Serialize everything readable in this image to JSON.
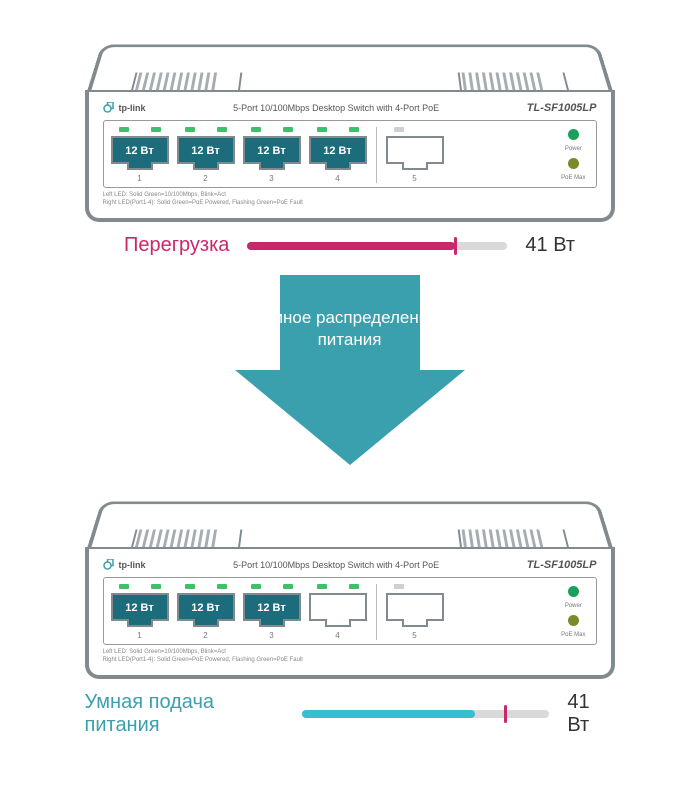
{
  "colors": {
    "stroke": "#808a8f",
    "teal": "#1d6c7b",
    "teal_arrow": "#3aa0ad",
    "teal_bar": "#35c0cd",
    "magenta": "#c9286b",
    "led_green": "#3fbf6a",
    "port_empty": "#ffffff",
    "port_stroke": "#808a8f",
    "track": "#d9d9d9",
    "dot_green": "#1aa05a",
    "dot_olive": "#7a8a2a"
  },
  "device": {
    "brand": "tp-link",
    "subtitle": "5-Port 10/100Mbps Desktop Switch with 4-Port PoE",
    "model": "TL-SF1005LP",
    "status": [
      {
        "label": "Power",
        "color_key": "dot_green"
      },
      {
        "label": "PoE Max",
        "color_key": "dot_olive"
      }
    ],
    "legend_lines": [
      "Left LED: Solid Green=10/100Mbps, Blink=Act",
      "Right LED(Port1-4): Solid Green=PoE Powered, Flashing Green=PoE Fault"
    ],
    "port_numbers": [
      "1",
      "2",
      "3",
      "4",
      "5"
    ]
  },
  "top": {
    "ports": [
      {
        "filled": true,
        "label": "12 Вт"
      },
      {
        "filled": true,
        "label": "12 Вт"
      },
      {
        "filled": true,
        "label": "12 Вт"
      },
      {
        "filled": true,
        "label": "12 Вт"
      },
      {
        "filled": false,
        "label": ""
      }
    ],
    "bar": {
      "label_left": "Перегрузка",
      "value_label": "41 Вт",
      "fill_pct": 80,
      "tick_pct": 80,
      "fill_color_key": "magenta",
      "tick_color_key": "magenta"
    }
  },
  "bottom": {
    "ports": [
      {
        "filled": true,
        "label": "12 Вт"
      },
      {
        "filled": true,
        "label": "12 Вт"
      },
      {
        "filled": true,
        "label": "12 Вт"
      },
      {
        "filled": false,
        "label": ""
      },
      {
        "filled": false,
        "label": ""
      }
    ],
    "bar": {
      "label_left": "Умная подача питания",
      "value_label": "41 Вт",
      "fill_pct": 70,
      "tick_pct": 82,
      "fill_color_key": "teal_bar",
      "tick_color_key": "magenta"
    }
  },
  "arrow": {
    "text": "Умное распределение питания"
  }
}
